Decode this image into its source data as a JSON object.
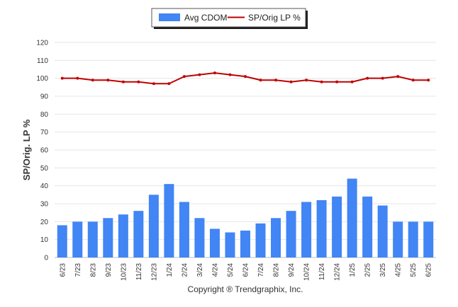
{
  "chart_data": {
    "type": "bar",
    "ylabel": "SP/Orig. LP %",
    "ylim": [
      0,
      120
    ],
    "yticks": [
      0,
      10,
      20,
      30,
      40,
      50,
      60,
      70,
      80,
      90,
      100,
      110,
      120
    ],
    "grid": true,
    "legend_position": "top-center",
    "categories": [
      "6/23",
      "7/23",
      "8/23",
      "9/23",
      "10/23",
      "11/23",
      "12/23",
      "1/24",
      "2/24",
      "3/24",
      "4/24",
      "5/24",
      "6/24",
      "7/24",
      "8/24",
      "9/24",
      "10/24",
      "11/24",
      "12/24",
      "1/25",
      "2/25",
      "3/25",
      "4/25",
      "5/25",
      "6/25"
    ],
    "series": [
      {
        "name": "Avg CDOM",
        "type": "bar",
        "color": "#4285f4",
        "values": [
          18,
          20,
          20,
          22,
          24,
          26,
          35,
          41,
          31,
          22,
          16,
          14,
          15,
          19,
          22,
          26,
          31,
          32,
          34,
          44,
          34,
          29,
          20,
          20,
          20
        ]
      },
      {
        "name": "SP/Orig LP %",
        "type": "line",
        "color": "#c00000",
        "values": [
          100,
          100,
          99,
          99,
          98,
          98,
          97,
          97,
          101,
          102,
          103,
          102,
          101,
          99,
          99,
          98,
          99,
          98,
          98,
          98,
          100,
          100,
          101,
          99,
          99
        ]
      }
    ]
  },
  "credit": "Copyright ® Trendgraphix, Inc."
}
